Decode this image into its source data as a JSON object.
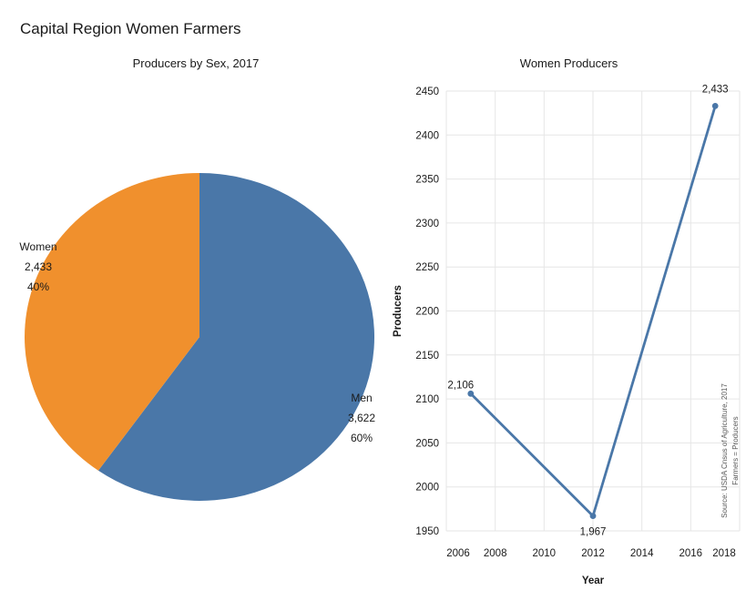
{
  "header": {
    "title": "Capital Region Women Farmers"
  },
  "colors": {
    "blue": "#4A77A8",
    "orange": "#F0902D",
    "grid": "#E6E6E6",
    "text": "#1A1A1A",
    "muted": "#595959"
  },
  "chart_data": [
    {
      "type": "pie",
      "title": "Producers by Sex, 2017",
      "legend_position": "none",
      "start_angle_deg_from_12_oclock": 0,
      "direction": "clockwise",
      "slices": [
        {
          "label": "Men",
          "value": 3622,
          "value_text": "3,622",
          "pct": 60,
          "pct_text": "60%",
          "color": "#4A77A8"
        },
        {
          "label": "Women",
          "value": 2433,
          "value_text": "2,433",
          "pct": 40,
          "pct_text": "40%",
          "color": "#F0902D"
        }
      ]
    },
    {
      "type": "line",
      "title": "Women Producers",
      "xlabel": "Year",
      "ylabel": "Producers",
      "x": [
        2007,
        2012,
        2017
      ],
      "y": [
        2106,
        1967,
        2433
      ],
      "point_labels": [
        "2,106",
        "1,967",
        "2,433"
      ],
      "xlim": [
        2006,
        2018
      ],
      "ylim": [
        1950,
        2450
      ],
      "xticks": [
        2006,
        2008,
        2010,
        2012,
        2014,
        2016,
        2018
      ],
      "yticks": [
        1950,
        2000,
        2050,
        2100,
        2150,
        2200,
        2250,
        2300,
        2350,
        2400,
        2450
      ],
      "grid": true,
      "line_color": "#4A77A8",
      "annotations": [
        "Source: USDA Cnsus of Agriculture, 2017",
        "Farmers = Producers"
      ]
    }
  ]
}
